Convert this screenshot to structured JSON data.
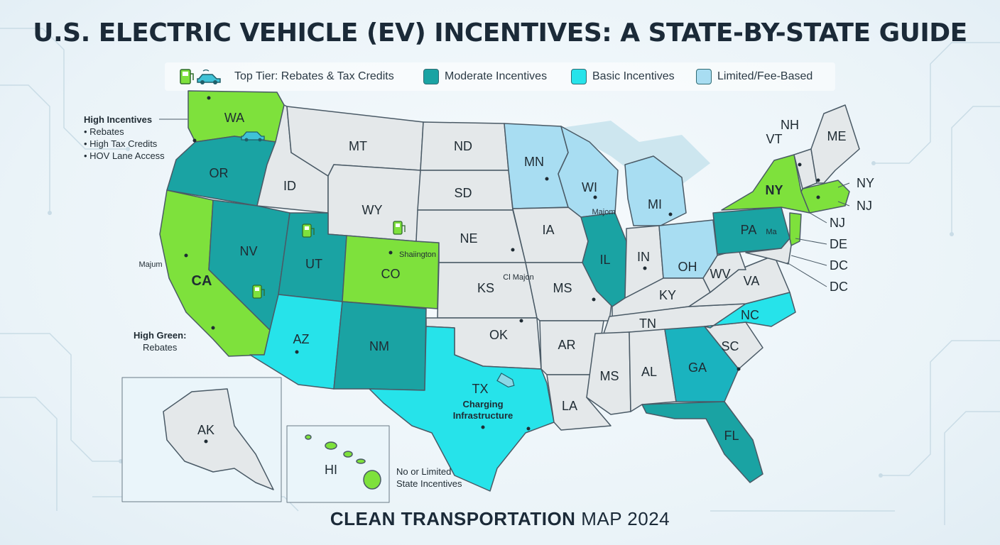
{
  "title": "U.S. ELECTRIC VEHICLE (EV) INCENTIVES: A STATE-BY-STATE GUIDE",
  "legend": [
    {
      "label": "Top Tier: Rebates & Tax Credits",
      "color": "#7ee13c",
      "icon": "ev-charger-and-car-icon"
    },
    {
      "label": "Moderate Incentives",
      "color": "#1aa3a3"
    },
    {
      "label": "Basic Incentives",
      "color": "#26e3ea"
    },
    {
      "label": "Limited/Fee-Based",
      "color": "#a8ddf2"
    }
  ],
  "colors": {
    "top": "#7ee13c",
    "moderate": "#1aa3a3",
    "basic": "#26e3ea",
    "limited": "#a8ddf2",
    "none": "#e4e8ea",
    "border": "#4a5a66"
  },
  "states": {
    "WA": "WA",
    "OR": "OR",
    "CA": "CA",
    "ID": "ID",
    "NV": "NV",
    "MT": "MT",
    "WY": "WY",
    "UT": "UT",
    "CO": "CO",
    "AZ": "AZ",
    "NM": "NM",
    "ND": "ND",
    "SD": "SD",
    "NE": "NE",
    "KS": "KS",
    "OK": "OK",
    "TX": "TX",
    "MN": "MN",
    "IA": "IA",
    "MS_mid": "MS",
    "AR": "AR",
    "LA": "LA",
    "WI": "WI",
    "IL": "IL",
    "MI": "MI",
    "IN": "IN",
    "OH": "OH",
    "KY": "KY",
    "TN": "TN",
    "MS": "MS",
    "AL": "AL",
    "GA": "GA",
    "FL": "FL",
    "SC": "SC",
    "NC": "NC",
    "VA": "VA",
    "WV": "WV",
    "PA": "PA",
    "NY": "NY",
    "ME": "ME",
    "VT": "VT",
    "NH": "NH",
    "NY_right": "NY",
    "NJ": "NJ",
    "NJ_2": "NJ",
    "DE": "DE",
    "DC": "DC",
    "DC_2": "DC",
    "AK": "AK",
    "HI": "HI"
  },
  "annotations": {
    "co_city": "Shaiington",
    "ks_city": "Cl Majon",
    "wi_city": "Majom",
    "ca_city": "Majum",
    "pa_city": "Ma",
    "tx_line1": "Charging",
    "tx_line2": "Infrastructure"
  },
  "notes": {
    "high_title": "High Incentives",
    "high_items": [
      "Rebates",
      "High Tax Credits",
      "HOV Lane Access"
    ],
    "green_title": "High Green:",
    "green_sub": "Rebates",
    "none_line1": "No or Limited",
    "none_line2": "State Incentives"
  },
  "footer": {
    "bold": "CLEAN TRANSPORTATION",
    "rest": "MAP 2024"
  }
}
